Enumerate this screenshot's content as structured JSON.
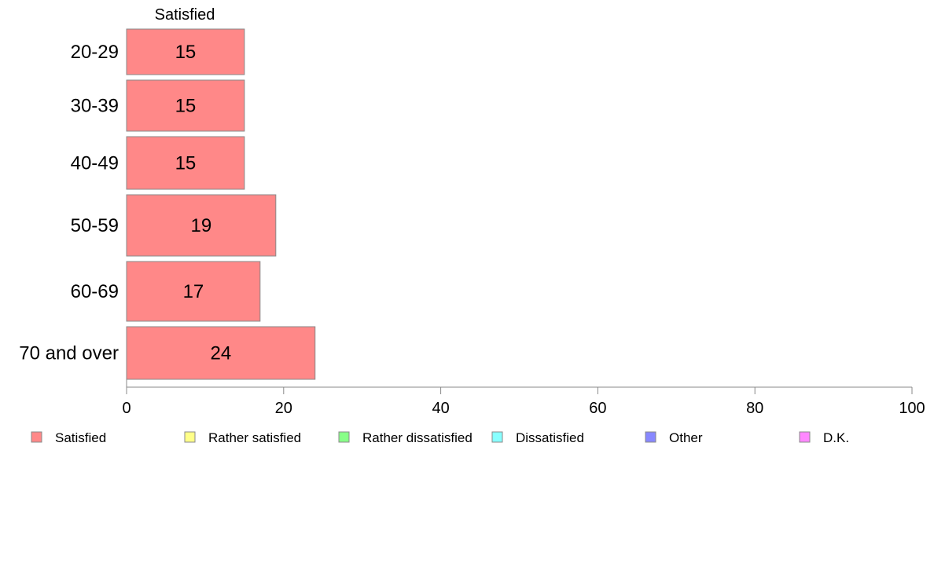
{
  "chart_data": {
    "type": "bar",
    "orientation": "horizontal",
    "stacked": true,
    "categories": [
      "20-29",
      "30-39",
      "40-49",
      "50-59",
      "60-69",
      "70 and over"
    ],
    "series": [
      {
        "name": "Satisfied",
        "color": "#ff8888",
        "values": [
          15,
          15,
          15,
          19,
          17,
          24
        ],
        "labels": [
          "15",
          "15",
          "15",
          "19",
          "17",
          "24"
        ]
      }
    ],
    "top_label": "Satisfied",
    "xlim": [
      0,
      100
    ],
    "x_ticks": [
      0,
      20,
      40,
      60,
      80,
      100
    ],
    "grid": false,
    "legend_position": "bottom",
    "legend": [
      {
        "label": "Satisfied",
        "color": "#ff8888"
      },
      {
        "label": "Rather satisfied",
        "color": "#ffff88"
      },
      {
        "label": "Rather dissatisfied",
        "color": "#88ff88"
      },
      {
        "label": "Dissatisfied",
        "color": "#88ffff"
      },
      {
        "label": "Other",
        "color": "#8888ff"
      },
      {
        "label": "D.K.",
        "color": "#ff88ff"
      }
    ]
  }
}
